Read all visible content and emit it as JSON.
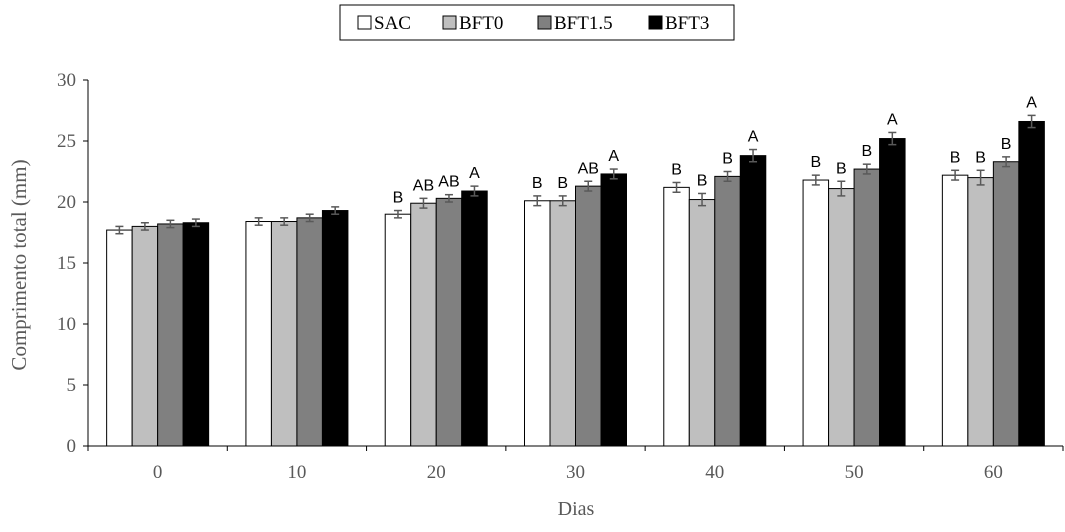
{
  "chart_data": {
    "type": "bar",
    "title": "",
    "xlabel": "Dias",
    "ylabel": "Comprimento total (mm)",
    "categories": [
      "0",
      "10",
      "20",
      "30",
      "40",
      "50",
      "60"
    ],
    "ylim": [
      0,
      30
    ],
    "yticks": [
      "0",
      "5",
      "10",
      "15",
      "20",
      "25",
      "30"
    ],
    "grid": false,
    "legend_position": "top-center",
    "series": [
      {
        "name": "SAC",
        "color": "#ffffff",
        "values": [
          17.7,
          18.4,
          19.0,
          20.1,
          21.2,
          21.8,
          22.2
        ],
        "errors": [
          0.3,
          0.3,
          0.3,
          0.4,
          0.4,
          0.4,
          0.4
        ],
        "labels": [
          "",
          "",
          "B",
          "B",
          "B",
          "B",
          "B"
        ]
      },
      {
        "name": "BFT0",
        "color": "#bfbfbf",
        "values": [
          18.0,
          18.4,
          19.9,
          20.1,
          20.2,
          21.1,
          22.0
        ],
        "errors": [
          0.3,
          0.3,
          0.4,
          0.4,
          0.5,
          0.6,
          0.6
        ],
        "labels": [
          "",
          "",
          "AB",
          "B",
          "B",
          "B",
          "B"
        ]
      },
      {
        "name": "BFT1.5",
        "color": "#808080",
        "values": [
          18.2,
          18.7,
          20.3,
          21.3,
          22.1,
          22.7,
          23.3
        ],
        "errors": [
          0.3,
          0.3,
          0.3,
          0.4,
          0.4,
          0.4,
          0.4
        ],
        "labels": [
          "",
          "",
          "AB",
          "AB",
          "B",
          "B",
          "B"
        ]
      },
      {
        "name": "BFT3",
        "color": "#000000",
        "values": [
          18.3,
          19.3,
          20.9,
          22.3,
          23.8,
          25.2,
          26.6
        ],
        "errors": [
          0.3,
          0.3,
          0.4,
          0.4,
          0.5,
          0.5,
          0.5
        ],
        "labels": [
          "",
          "",
          "A",
          "A",
          "A",
          "A",
          "A"
        ]
      }
    ]
  }
}
